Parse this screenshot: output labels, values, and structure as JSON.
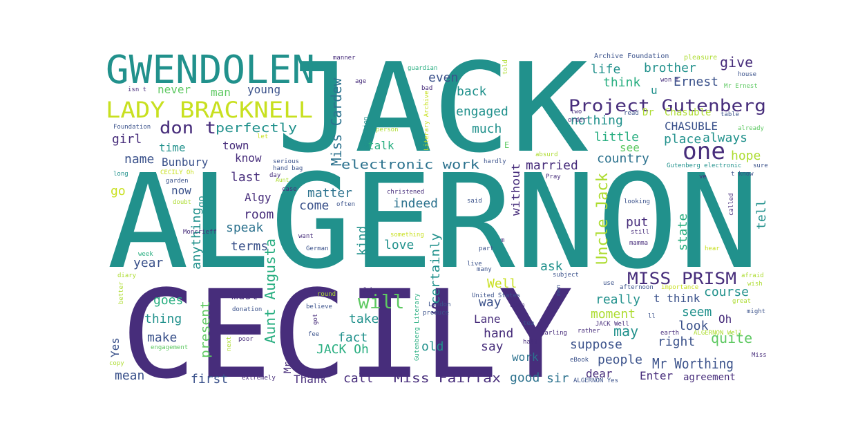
{
  "palette": {
    "dark_purple": "#472d7b",
    "indigo": "#3b528b",
    "blue": "#2c728e",
    "teal": "#21918c",
    "green": "#28ae80",
    "light_green": "#5ec962",
    "yellow_green": "#addc30",
    "yellow": "#c8e020"
  },
  "words": {
    "w001": "JACK",
    "w002": "ALGERNON",
    "w003": "CECILY",
    "w004": "GWENDOLEN",
    "w005": "LADY BRACKNELL",
    "w006": "Project Gutenberg",
    "w007": "one",
    "w008": "MISS PRISM",
    "w009": "Uncle Jack",
    "w010": "Miss Cardew",
    "w011": "Aunt Augusta",
    "w012": "s",
    "w013": "will",
    "w014": "don t",
    "w015": "perfectly",
    "w016": "never",
    "w017": "man",
    "w018": "young",
    "w019": "even",
    "w020": "life",
    "w021": "brother",
    "w022": "give",
    "w023": "think",
    "w024": "Ernest",
    "w025": "u",
    "w026": "back",
    "w027": "engaged",
    "w028": "much",
    "w029": "nothing",
    "w030": "CHASUBLE",
    "w031": "little",
    "w032": "always",
    "w033": "place",
    "w034": "see",
    "w035": "hope",
    "w036": "country",
    "w037": "married",
    "w038": "electronic work",
    "w039": "talk",
    "w040": "girl",
    "w041": "time",
    "w042": "town",
    "w043": "know",
    "w044": "name",
    "w045": "Bunbury",
    "w046": "go",
    "w047": "now",
    "w048": "last",
    "w049": "matter",
    "w050": "indeed",
    "w051": "without",
    "w052": "Algy",
    "w053": "come",
    "w054": "room",
    "w055": "kind",
    "w056": "speak",
    "w057": "anything",
    "w058": "terms",
    "w059": "love",
    "w060": "certainly",
    "w061": "put",
    "w062": "state",
    "w063": "tell",
    "w064": "year",
    "w065": "ask",
    "w066": "Well",
    "w067": "must",
    "w068": "goes",
    "w069": "present",
    "w070": "thing",
    "w071": "way",
    "w072": "really",
    "w073": "t think",
    "w074": "course",
    "w075": "moment",
    "w076": "seem",
    "w077": "Oh",
    "w078": "take",
    "w079": "Lane",
    "w080": "may",
    "w081": "look",
    "w082": "make",
    "w083": "fact",
    "w084": "hand",
    "w085": "suppose",
    "w086": "right",
    "w087": "quite",
    "w088": "Yes",
    "w089": "JACK Oh",
    "w090": "old",
    "w091": "say",
    "w092": "people",
    "w093": "Mr Worthing",
    "w094": "work",
    "w095": "mean",
    "w096": "Mr",
    "w097": "dear",
    "w098": "first",
    "w099": "Thank",
    "w100": "call",
    "w101": "Miss Fairfax",
    "w102": "good",
    "w103": "sir",
    "w104": "Enter",
    "w105": "agreement",
    "w106": "Dr",
    "w107": "Chasuble",
    "w108": "E",
    "w109": "manner",
    "w110": "age",
    "w111": "guardian",
    "w112": "told",
    "w113": "bad",
    "w114": "Archive Foundation",
    "w115": "pleasure",
    "w116": "house",
    "w117": "Mr Ernest",
    "w118": "won t",
    "w119": "isn t",
    "w120": "question",
    "w121": "Literary Archive",
    "w122": "two",
    "w123": "read",
    "w124": "table",
    "w125": "order",
    "w126": "Foundation",
    "w127": "let",
    "w128": "person",
    "w129": "already",
    "w130": "serious",
    "w131": "hand bag",
    "w132": "absurd",
    "w133": "long",
    "w134": "CECILY Oh",
    "w135": "Aunt",
    "w136": "day",
    "w137": "hardly",
    "w138": "Gutenberg electronic",
    "w139": "sure",
    "w140": "garden",
    "w141": "Pray",
    "w142": "ve",
    "w143": "t know",
    "w144": "case",
    "w145": "christened",
    "w146": "often",
    "w147": "doubt",
    "w148": "said",
    "w149": "called",
    "w150": "looking",
    "w151": "something",
    "w152": "Moncrieff",
    "w153": "want",
    "w154": "still",
    "w155": "m",
    "w156": "mamma",
    "w157": "German",
    "w158": "part",
    "w159": "hear",
    "w160": "week",
    "w161": "live",
    "w162": "many",
    "w163": "diary",
    "w164": "subject",
    "w165": "use",
    "w166": "afternoon",
    "w167": "importance",
    "w168": "afraid",
    "w169": "wish",
    "w170": "John",
    "w171": "round",
    "w172": "United States",
    "w173": "men",
    "w174": "better",
    "w175": "donation",
    "w176": "believe",
    "w177": "London",
    "w178": "upon",
    "w179": "great",
    "w180": "produce",
    "w181": "ll",
    "w182": "might",
    "w183": "got",
    "w184": "tea",
    "w185": "JACK Well",
    "w186": "rather",
    "w187": "going",
    "w188": "fee",
    "w189": "poor",
    "w190": "Gutenberg Literary",
    "w191": "darling",
    "w192": "earth",
    "w193": "ALGERNON Well",
    "w194": "next",
    "w195": "half",
    "w196": "eBook",
    "w197": "Miss",
    "w198": "engagement",
    "w199": "copy",
    "w200": "extremely",
    "w201": "ALGERNON Yes"
  }
}
